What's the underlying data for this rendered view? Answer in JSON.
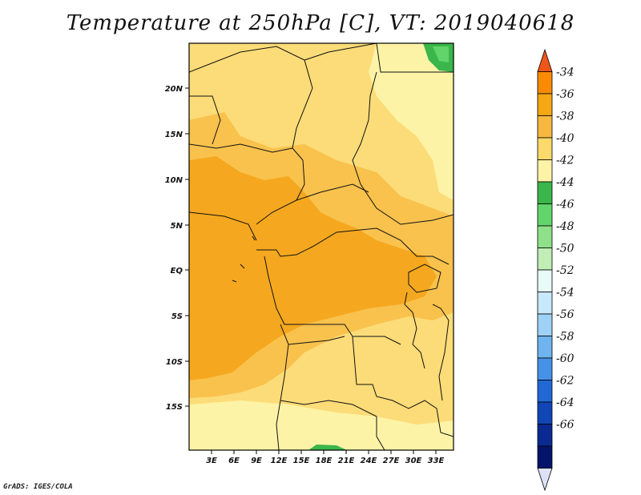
{
  "title": "Temperature at 250hPa [C], VT: 2019040618",
  "credit": "GrADS: IGES/COLA",
  "map": {
    "lat_ticks": [
      "20N",
      "15N",
      "10N",
      "5N",
      "EQ",
      "5S",
      "10S",
      "15S"
    ],
    "lon_ticks": [
      "3E",
      "6E",
      "9E",
      "12E",
      "15E",
      "18E",
      "21E",
      "24E",
      "27E",
      "30E",
      "33E"
    ]
  },
  "colorbar": {
    "labels": [
      "-34",
      "-36",
      "-38",
      "-40",
      "-42",
      "-44",
      "-46",
      "-48",
      "-50",
      "-52",
      "-54",
      "-56",
      "-58",
      "-60",
      "-62",
      "-64",
      "-66"
    ],
    "colors": [
      "#f0561a",
      "#fb8b05",
      "#f5a714",
      "#f7b840",
      "#fbd96b",
      "#fdf3a6",
      "#3ab64a",
      "#61d56a",
      "#8ee089",
      "#c0eeb5",
      "#e9fbf6",
      "#c8e8fb",
      "#9fd1f6",
      "#6fb4ee",
      "#4692e8",
      "#2268d4",
      "#1046b5",
      "#0a2a92",
      "#05136a",
      "#dde1f5"
    ]
  },
  "colors": {
    "t_minus36": "#f5a81f",
    "t_minus38": "#f9c24d",
    "t_minus40": "#fcdc78",
    "t_minus42": "#fdf3a6",
    "t_minus44": "#3ab64a",
    "t_minus46": "#61d56a"
  }
}
